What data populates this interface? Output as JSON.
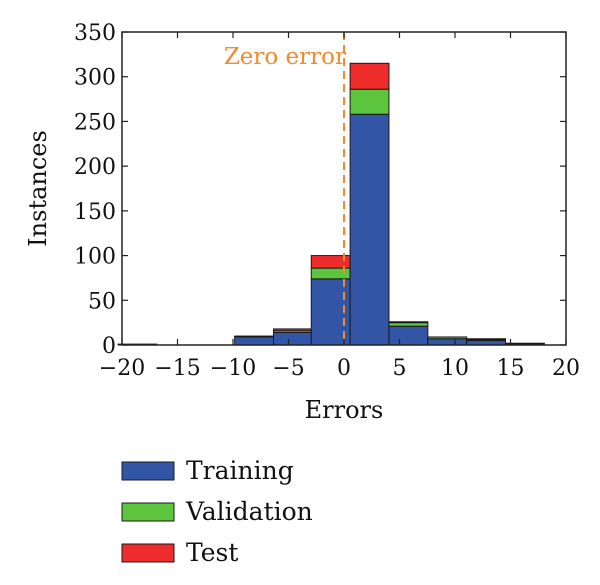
{
  "chart_data": {
    "type": "bar",
    "stacked": true,
    "xlabel": "Errors",
    "ylabel": "Instances",
    "xlim": [
      -20,
      20
    ],
    "ylim": [
      0,
      350
    ],
    "xticks": [
      -20,
      -15,
      -10,
      -5,
      0,
      5,
      10,
      15,
      20
    ],
    "xtick_labels": [
      "−20",
      "−15",
      "−10",
      "−5",
      "0",
      "5",
      "10",
      "15",
      "20"
    ],
    "yticks": [
      0,
      50,
      100,
      150,
      200,
      250,
      300,
      350
    ],
    "bin_width": 3.5,
    "bin_centers": [
      -18.6,
      -15.1,
      -11.6,
      -8.1,
      -4.6,
      -1.2,
      2.3,
      5.8,
      9.3,
      12.8,
      16.3
    ],
    "series": [
      {
        "name": "Training",
        "color": "#3355a6",
        "values": [
          1,
          0,
          0,
          9,
          14,
          74,
          258,
          21,
          7,
          5,
          1
        ]
      },
      {
        "name": "Validation",
        "color": "#5cc43d",
        "values": [
          0,
          0,
          0,
          0,
          2,
          12,
          28,
          4,
          2,
          1,
          0
        ]
      },
      {
        "name": "Test",
        "color": "#ee2c2c",
        "values": [
          0,
          0,
          0,
          1,
          2,
          14,
          29,
          1,
          0,
          1,
          1
        ]
      }
    ],
    "reference_line": {
      "x": 0,
      "label": "Zero error",
      "color": "#f28a2e",
      "style": "dashed"
    },
    "legend_position": "bottom"
  }
}
